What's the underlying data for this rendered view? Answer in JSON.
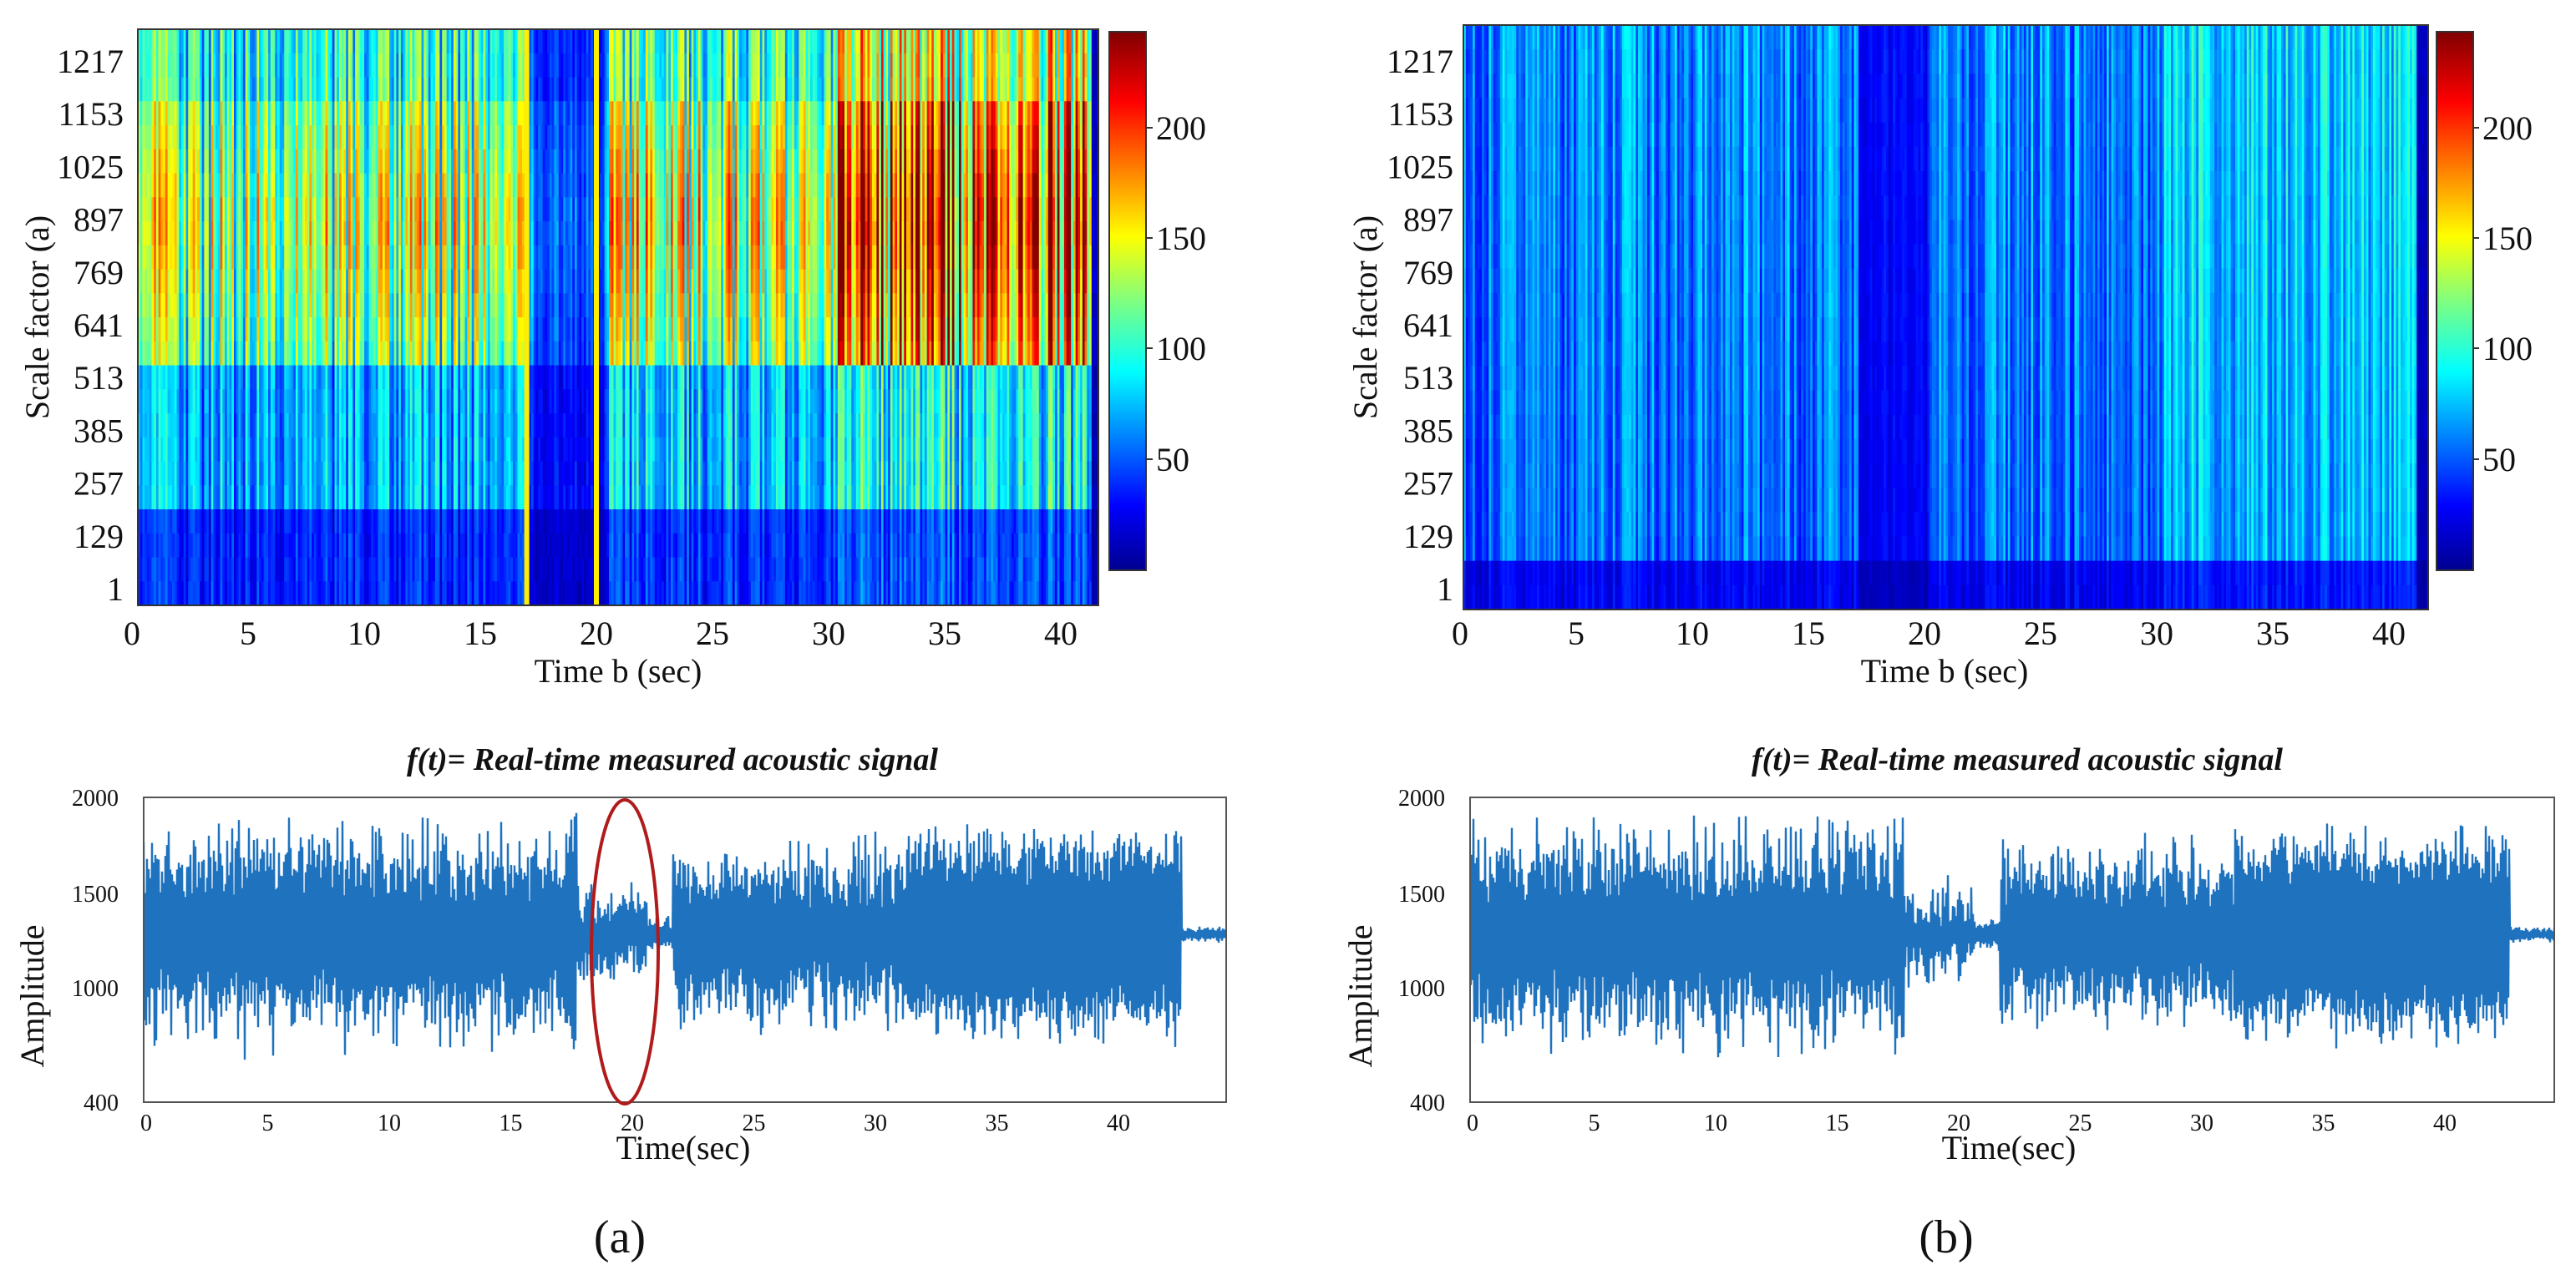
{
  "panels": [
    {
      "id": "a",
      "label": "(a)",
      "scalogram": {
        "ylabel": "Scale factor (a)",
        "xlabel": "Time b (sec)",
        "yticks": [
          "1217",
          "1153",
          "1025",
          "897",
          "769",
          "641",
          "513",
          "385",
          "257",
          "129",
          "1"
        ],
        "xticks": [
          "0",
          "5",
          "10",
          "15",
          "20",
          "25",
          "30",
          "35",
          "40"
        ]
      },
      "colorbar": {
        "ticks": [
          "200",
          "150",
          "100",
          "50"
        ]
      },
      "signal": {
        "title": "f(t)= Real-time measured acoustic signal",
        "ylabel": "Amplitude",
        "xlabel": "Time(sec)",
        "yticks": [
          "2000",
          "1500",
          "1000",
          "400"
        ],
        "xticks": [
          "0",
          "5",
          "10",
          "15",
          "20",
          "25",
          "30",
          "35",
          "40"
        ]
      }
    },
    {
      "id": "b",
      "label": "(b)",
      "scalogram": {
        "ylabel": "Scale factor (a)",
        "xlabel": "Time b (sec)",
        "yticks": [
          "1217",
          "1153",
          "1025",
          "897",
          "769",
          "641",
          "513",
          "385",
          "257",
          "129",
          "1"
        ],
        "xticks": [
          "0",
          "5",
          "10",
          "15",
          "20",
          "25",
          "30",
          "35",
          "40"
        ]
      },
      "colorbar": {
        "ticks": [
          "200",
          "150",
          "100",
          "50"
        ]
      },
      "signal": {
        "title": "f(t)= Real-time measured acoustic signal",
        "ylabel": "Amplitude",
        "xlabel": "Time(sec)",
        "yticks": [
          "2000",
          "1500",
          "1000",
          "400"
        ],
        "xticks": [
          "0",
          "5",
          "10",
          "15",
          "20",
          "25",
          "30",
          "35",
          "40"
        ]
      }
    }
  ],
  "chart_data": [
    {
      "panel": "a",
      "type": "heatmap",
      "title": "",
      "xlabel": "Time b (sec)",
      "ylabel": "Scale factor (a)",
      "x_range": [
        0,
        42
      ],
      "y_ticks": [
        1,
        129,
        257,
        385,
        513,
        641,
        769,
        897,
        1025,
        1153,
        1217
      ],
      "colorbar_range": [
        0,
        240
      ],
      "colormap": "jet",
      "markers": [
        {
          "type": "vertical-line",
          "x": 17,
          "color": "#ffee00"
        },
        {
          "type": "vertical-line",
          "x": 20,
          "color": "#ffee00"
        }
      ],
      "segments": [
        {
          "x_start": 0,
          "x_end": 17,
          "intensity": "moderate-high"
        },
        {
          "x_start": 17,
          "x_end": 20,
          "intensity": "low"
        },
        {
          "x_start": 20,
          "x_end": 30,
          "intensity": "moderate-high"
        },
        {
          "x_start": 30,
          "x_end": 41,
          "intensity": "high"
        }
      ]
    },
    {
      "panel": "a",
      "type": "line",
      "title": "f(t)= Real-time measured acoustic signal",
      "xlabel": "Time(sec)",
      "ylabel": "Amplitude",
      "x_range": [
        0,
        44
      ],
      "ylim": [
        400,
        2000
      ],
      "series": [
        {
          "name": "f(t)",
          "color": "#1f72bd",
          "center": 1280
        }
      ],
      "annotations": [
        {
          "type": "ellipse",
          "x_center": 19.5,
          "y_center": 1200,
          "color": "#b01b1b"
        }
      ]
    },
    {
      "panel": "b",
      "type": "heatmap",
      "title": "",
      "xlabel": "Time b (sec)",
      "ylabel": "Scale factor (a)",
      "x_range": [
        0,
        42
      ],
      "y_ticks": [
        1,
        129,
        257,
        385,
        513,
        641,
        769,
        897,
        1025,
        1153,
        1217
      ],
      "colorbar_range": [
        0,
        240
      ],
      "colormap": "jet",
      "segments": [
        {
          "x_start": 0,
          "x_end": 17,
          "intensity": "low-moderate"
        },
        {
          "x_start": 17,
          "x_end": 20,
          "intensity": "low"
        },
        {
          "x_start": 20,
          "x_end": 30,
          "intensity": "low-moderate"
        },
        {
          "x_start": 30,
          "x_end": 41,
          "intensity": "moderate"
        }
      ]
    },
    {
      "panel": "b",
      "type": "line",
      "title": "f(t)= Real-time measured acoustic signal",
      "xlabel": "Time(sec)",
      "ylabel": "Amplitude",
      "x_range": [
        0,
        44
      ],
      "ylim": [
        400,
        2000
      ],
      "series": [
        {
          "name": "f(t)",
          "color": "#1f72bd",
          "center": 1280
        }
      ]
    }
  ]
}
